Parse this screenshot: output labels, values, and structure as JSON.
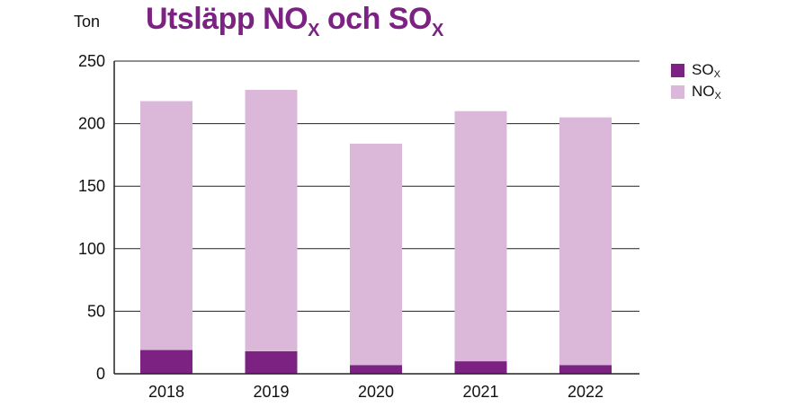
{
  "title": {
    "main": "Utsläpp NO",
    "sub1": "X",
    "mid": " och SO",
    "sub2": "X"
  },
  "unit_label": "Ton",
  "legend": [
    {
      "label": "SO",
      "sub": "X",
      "color": "#7b2282"
    },
    {
      "label": "NO",
      "sub": "X",
      "color": "#dbb8d9"
    }
  ],
  "chart_data": {
    "type": "bar",
    "stacked": true,
    "title": "Utsläpp NOX och SOX",
    "ylabel": "Ton",
    "categories": [
      "2018",
      "2019",
      "2020",
      "2021",
      "2022"
    ],
    "series": [
      {
        "name": "SOX",
        "color": "#7b2282",
        "values": [
          19,
          18,
          7,
          10,
          7
        ]
      },
      {
        "name": "NOX",
        "color": "#dbb8d9",
        "values": [
          199,
          209,
          177,
          200,
          198
        ]
      }
    ],
    "ylim": [
      0,
      250
    ],
    "yticks": [
      0,
      50,
      100,
      150,
      200,
      250
    ],
    "grid": true,
    "legend_position": "top-right"
  }
}
